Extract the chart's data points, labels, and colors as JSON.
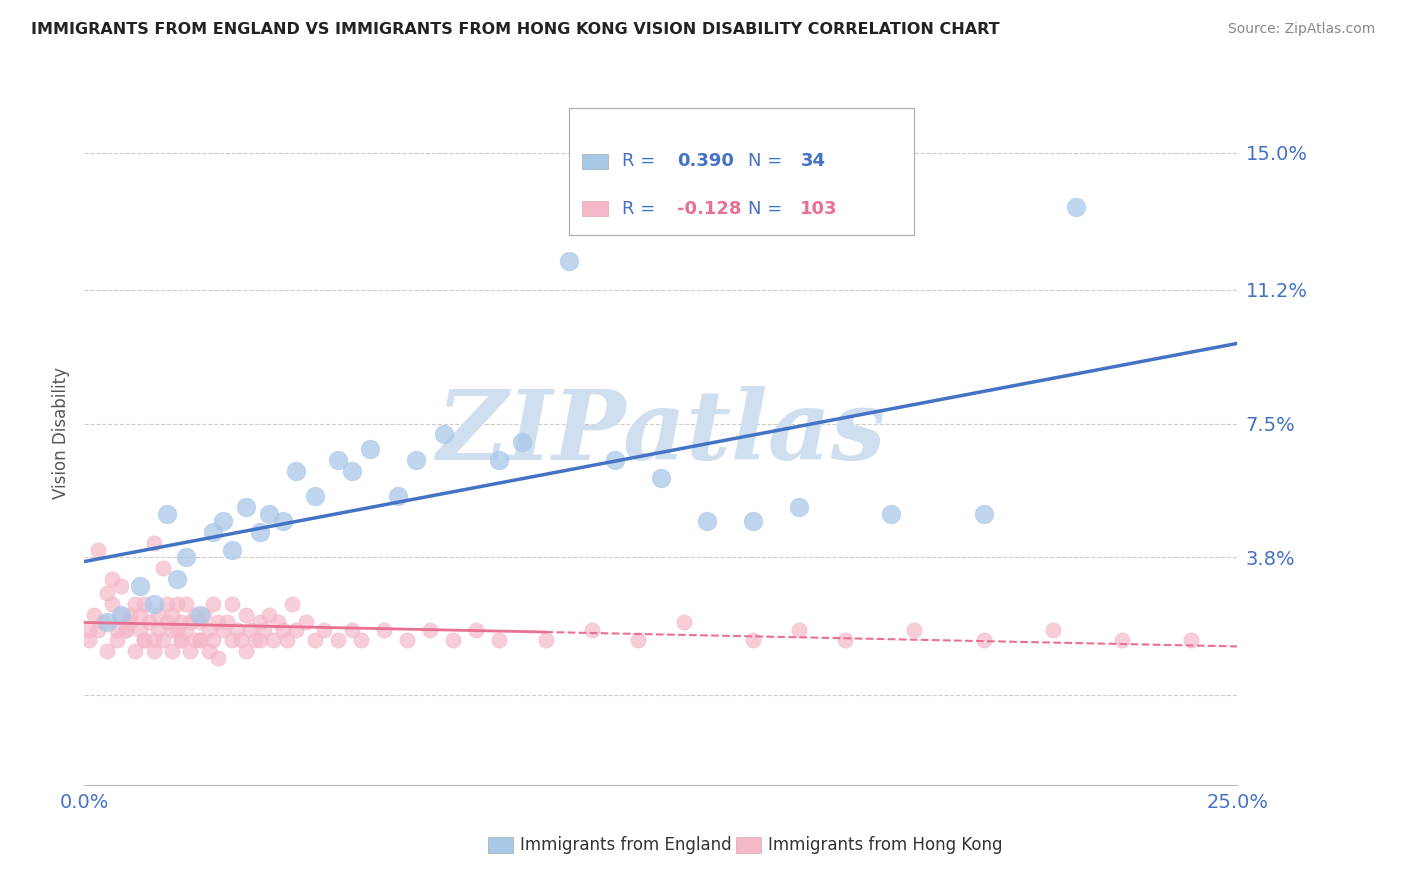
{
  "title": "IMMIGRANTS FROM ENGLAND VS IMMIGRANTS FROM HONG KONG VISION DISABILITY CORRELATION CHART",
  "source": "Source: ZipAtlas.com",
  "ylabel": "Vision Disability",
  "xlim": [
    0.0,
    0.25
  ],
  "ylim": [
    -0.025,
    0.17
  ],
  "yticks": [
    0.0,
    0.038,
    0.075,
    0.112,
    0.15
  ],
  "ytick_labels": [
    "",
    "3.8%",
    "7.5%",
    "11.2%",
    "15.0%"
  ],
  "xticks": [
    0.0,
    0.05,
    0.1,
    0.15,
    0.2,
    0.25
  ],
  "xtick_labels": [
    "0.0%",
    "",
    "",
    "",
    "",
    "25.0%"
  ],
  "R_england": 0.39,
  "N_england": 34,
  "R_hongkong": -0.128,
  "N_hongkong": 103,
  "england_color": "#a8c8e8",
  "hongkong_color": "#f5b8c8",
  "england_line_color": "#4472c4",
  "hongkong_line_color": "#e87090",
  "text_color_blue": "#4472c4",
  "text_color_pink": "#e87090",
  "watermark": "ZIPatlas",
  "watermark_color": "#d0dff0",
  "england_x": [
    0.005,
    0.008,
    0.012,
    0.015,
    0.018,
    0.02,
    0.022,
    0.025,
    0.028,
    0.03,
    0.032,
    0.035,
    0.038,
    0.04,
    0.043,
    0.046,
    0.05,
    0.055,
    0.058,
    0.062,
    0.068,
    0.072,
    0.078,
    0.09,
    0.095,
    0.105,
    0.115,
    0.125,
    0.135,
    0.145,
    0.155,
    0.175,
    0.195,
    0.215
  ],
  "england_y": [
    0.02,
    0.022,
    0.03,
    0.025,
    0.05,
    0.032,
    0.038,
    0.022,
    0.045,
    0.048,
    0.04,
    0.052,
    0.045,
    0.05,
    0.048,
    0.062,
    0.055,
    0.065,
    0.062,
    0.068,
    0.055,
    0.065,
    0.072,
    0.065,
    0.07,
    0.12,
    0.065,
    0.06,
    0.048,
    0.048,
    0.052,
    0.05,
    0.05,
    0.135
  ],
  "hongkong_x": [
    0.001,
    0.002,
    0.003,
    0.004,
    0.005,
    0.006,
    0.006,
    0.007,
    0.008,
    0.008,
    0.009,
    0.01,
    0.01,
    0.011,
    0.012,
    0.012,
    0.013,
    0.013,
    0.014,
    0.015,
    0.015,
    0.016,
    0.016,
    0.017,
    0.018,
    0.018,
    0.019,
    0.019,
    0.02,
    0.02,
    0.021,
    0.021,
    0.022,
    0.022,
    0.023,
    0.024,
    0.024,
    0.025,
    0.025,
    0.026,
    0.027,
    0.028,
    0.028,
    0.029,
    0.03,
    0.031,
    0.032,
    0.033,
    0.034,
    0.035,
    0.036,
    0.037,
    0.038,
    0.039,
    0.04,
    0.041,
    0.042,
    0.043,
    0.044,
    0.045,
    0.046,
    0.048,
    0.05,
    0.052,
    0.055,
    0.058,
    0.06,
    0.065,
    0.07,
    0.075,
    0.08,
    0.085,
    0.09,
    0.1,
    0.11,
    0.12,
    0.13,
    0.145,
    0.155,
    0.165,
    0.18,
    0.195,
    0.21,
    0.225,
    0.24,
    0.001,
    0.003,
    0.005,
    0.007,
    0.009,
    0.011,
    0.013,
    0.015,
    0.017,
    0.019,
    0.021,
    0.023,
    0.025,
    0.027,
    0.029,
    0.032,
    0.035,
    0.038
  ],
  "hongkong_y": [
    0.018,
    0.022,
    0.04,
    0.02,
    0.028,
    0.025,
    0.032,
    0.018,
    0.03,
    0.022,
    0.018,
    0.022,
    0.02,
    0.025,
    0.018,
    0.022,
    0.025,
    0.015,
    0.02,
    0.042,
    0.015,
    0.022,
    0.018,
    0.035,
    0.02,
    0.025,
    0.018,
    0.022,
    0.025,
    0.018,
    0.02,
    0.015,
    0.025,
    0.018,
    0.02,
    0.015,
    0.022,
    0.02,
    0.015,
    0.022,
    0.018,
    0.025,
    0.015,
    0.02,
    0.018,
    0.02,
    0.025,
    0.018,
    0.015,
    0.022,
    0.018,
    0.015,
    0.02,
    0.018,
    0.022,
    0.015,
    0.02,
    0.018,
    0.015,
    0.025,
    0.018,
    0.02,
    0.015,
    0.018,
    0.015,
    0.018,
    0.015,
    0.018,
    0.015,
    0.018,
    0.015,
    0.018,
    0.015,
    0.015,
    0.018,
    0.015,
    0.02,
    0.015,
    0.018,
    0.015,
    0.018,
    0.015,
    0.018,
    0.015,
    0.015,
    0.015,
    0.018,
    0.012,
    0.015,
    0.018,
    0.012,
    0.015,
    0.012,
    0.015,
    0.012,
    0.015,
    0.012,
    0.015,
    0.012,
    0.01,
    0.015,
    0.012,
    0.015
  ]
}
